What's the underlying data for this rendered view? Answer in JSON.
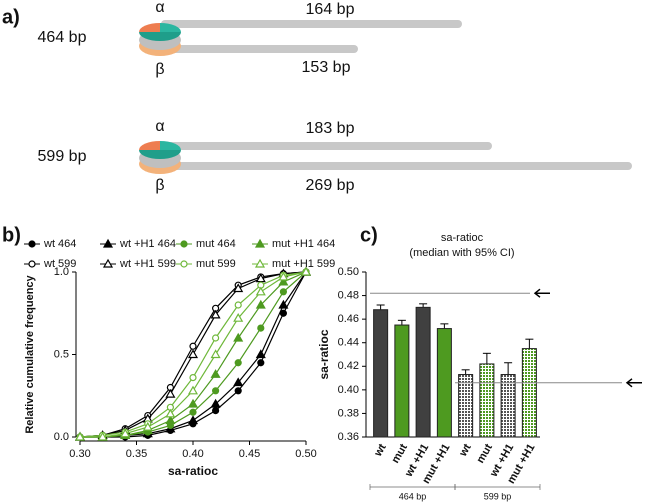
{
  "diagram": {
    "label": "a)",
    "constructs": [
      {
        "length": "464 bp",
        "alpha": "α",
        "beta": "β",
        "arm_top": "164 bp",
        "arm_bottom": "153 bp"
      },
      {
        "length": "599 bp",
        "alpha": "α",
        "beta": "β",
        "arm_top": "183 bp",
        "arm_bottom": "269 bp"
      }
    ]
  },
  "chart_data": [
    {
      "type": "line",
      "label": "b)",
      "xlabel": "sa-ratioc",
      "ylabel": "Relative cumulative frequency",
      "x": [
        0.3,
        0.32,
        0.34,
        0.36,
        0.38,
        0.4,
        0.42,
        0.44,
        0.46,
        0.48,
        0.5
      ],
      "xlim": [
        0.3,
        0.5
      ],
      "xticks": [
        {
          "value": 0.3,
          "label": "0.30"
        },
        0.35,
        {
          "value": 0.4,
          "label": "0.40"
        },
        0.45,
        {
          "value": 0.5,
          "label": "0.50"
        }
      ],
      "ylim": [
        0,
        1
      ],
      "yticks": [
        {
          "value": 0,
          "label": "0.0"
        },
        0.5,
        {
          "value": 1,
          "label": "1.0"
        }
      ],
      "series": [
        {
          "name": "wt 464",
          "color": "#000000",
          "marker": "circle",
          "filled": true,
          "values": [
            0,
            0,
            0,
            0.01,
            0.04,
            0.08,
            0.16,
            0.28,
            0.45,
            0.75,
            1
          ]
        },
        {
          "name": "wt +H1 464",
          "color": "#000000",
          "marker": "triangle",
          "filled": true,
          "values": [
            0,
            0,
            0.01,
            0.02,
            0.05,
            0.1,
            0.2,
            0.33,
            0.5,
            0.8,
            1
          ]
        },
        {
          "name": "mut 464",
          "color": "#4e9a20",
          "marker": "circle",
          "filled": true,
          "values": [
            0,
            0,
            0.01,
            0.03,
            0.07,
            0.15,
            0.28,
            0.45,
            0.66,
            0.88,
            1
          ]
        },
        {
          "name": "mut +H1 464",
          "color": "#4e9a20",
          "marker": "triangle",
          "filled": true,
          "values": [
            0,
            0,
            0.01,
            0.04,
            0.1,
            0.2,
            0.38,
            0.6,
            0.8,
            0.94,
            1
          ]
        },
        {
          "name": "wt 599",
          "color": "#000000",
          "marker": "circle",
          "filled": false,
          "values": [
            0,
            0.01,
            0.05,
            0.13,
            0.3,
            0.55,
            0.78,
            0.92,
            0.97,
            0.99,
            1
          ]
        },
        {
          "name": "wt +H1 599",
          "color": "#000000",
          "marker": "triangle",
          "filled": false,
          "values": [
            0,
            0.01,
            0.04,
            0.11,
            0.26,
            0.5,
            0.74,
            0.9,
            0.96,
            0.99,
            1
          ]
        },
        {
          "name": "mut 599",
          "color": "#6fb83a",
          "marker": "circle",
          "filled": false,
          "values": [
            0,
            0.01,
            0.03,
            0.08,
            0.18,
            0.36,
            0.6,
            0.8,
            0.92,
            0.98,
            1
          ]
        },
        {
          "name": "mut +H1 599",
          "color": "#6fb83a",
          "marker": "triangle",
          "filled": false,
          "values": [
            0,
            0,
            0.02,
            0.06,
            0.14,
            0.28,
            0.5,
            0.72,
            0.88,
            0.97,
            1
          ]
        }
      ]
    },
    {
      "type": "bar",
      "label": "c)",
      "title": "sa-ratioc",
      "subtitle": "(median with 95% CI)",
      "ylabel": "sa-ratioc",
      "categories": [
        "wt",
        "mut",
        "wt +H1",
        "mut +H1",
        "wt",
        "mut",
        "wt +H1",
        "mut +H1"
      ],
      "values": [
        0.468,
        0.455,
        0.47,
        0.452,
        0.413,
        0.422,
        0.413,
        0.435
      ],
      "errors": [
        0.004,
        0.004,
        0.003,
        0.004,
        0.004,
        0.009,
        0.01,
        0.008
      ],
      "colors": [
        "#404040",
        "#4e9a20",
        "#404040",
        "#4e9a20",
        "#404040",
        "#4e9a20",
        "#404040",
        "#4e9a20"
      ],
      "hatched": [
        false,
        false,
        false,
        false,
        true,
        true,
        true,
        true
      ],
      "groups": [
        "464 bp",
        "599 bp"
      ],
      "reference_lines": [
        0.482,
        0.406
      ],
      "ylim": [
        0.36,
        0.5
      ],
      "yticks": [
        {
          "value": 0.36,
          "label": "0.36"
        },
        {
          "value": 0.38,
          "label": "0.38"
        },
        {
          "value": 0.4,
          "label": "0.40"
        },
        {
          "value": 0.42,
          "label": "0.42"
        },
        {
          "value": 0.44,
          "label": "0.44"
        },
        {
          "value": 0.46,
          "label": "0.46"
        },
        {
          "value": 0.48,
          "label": "0.48"
        },
        {
          "value": 0.5,
          "label": "0.50"
        }
      ]
    }
  ]
}
